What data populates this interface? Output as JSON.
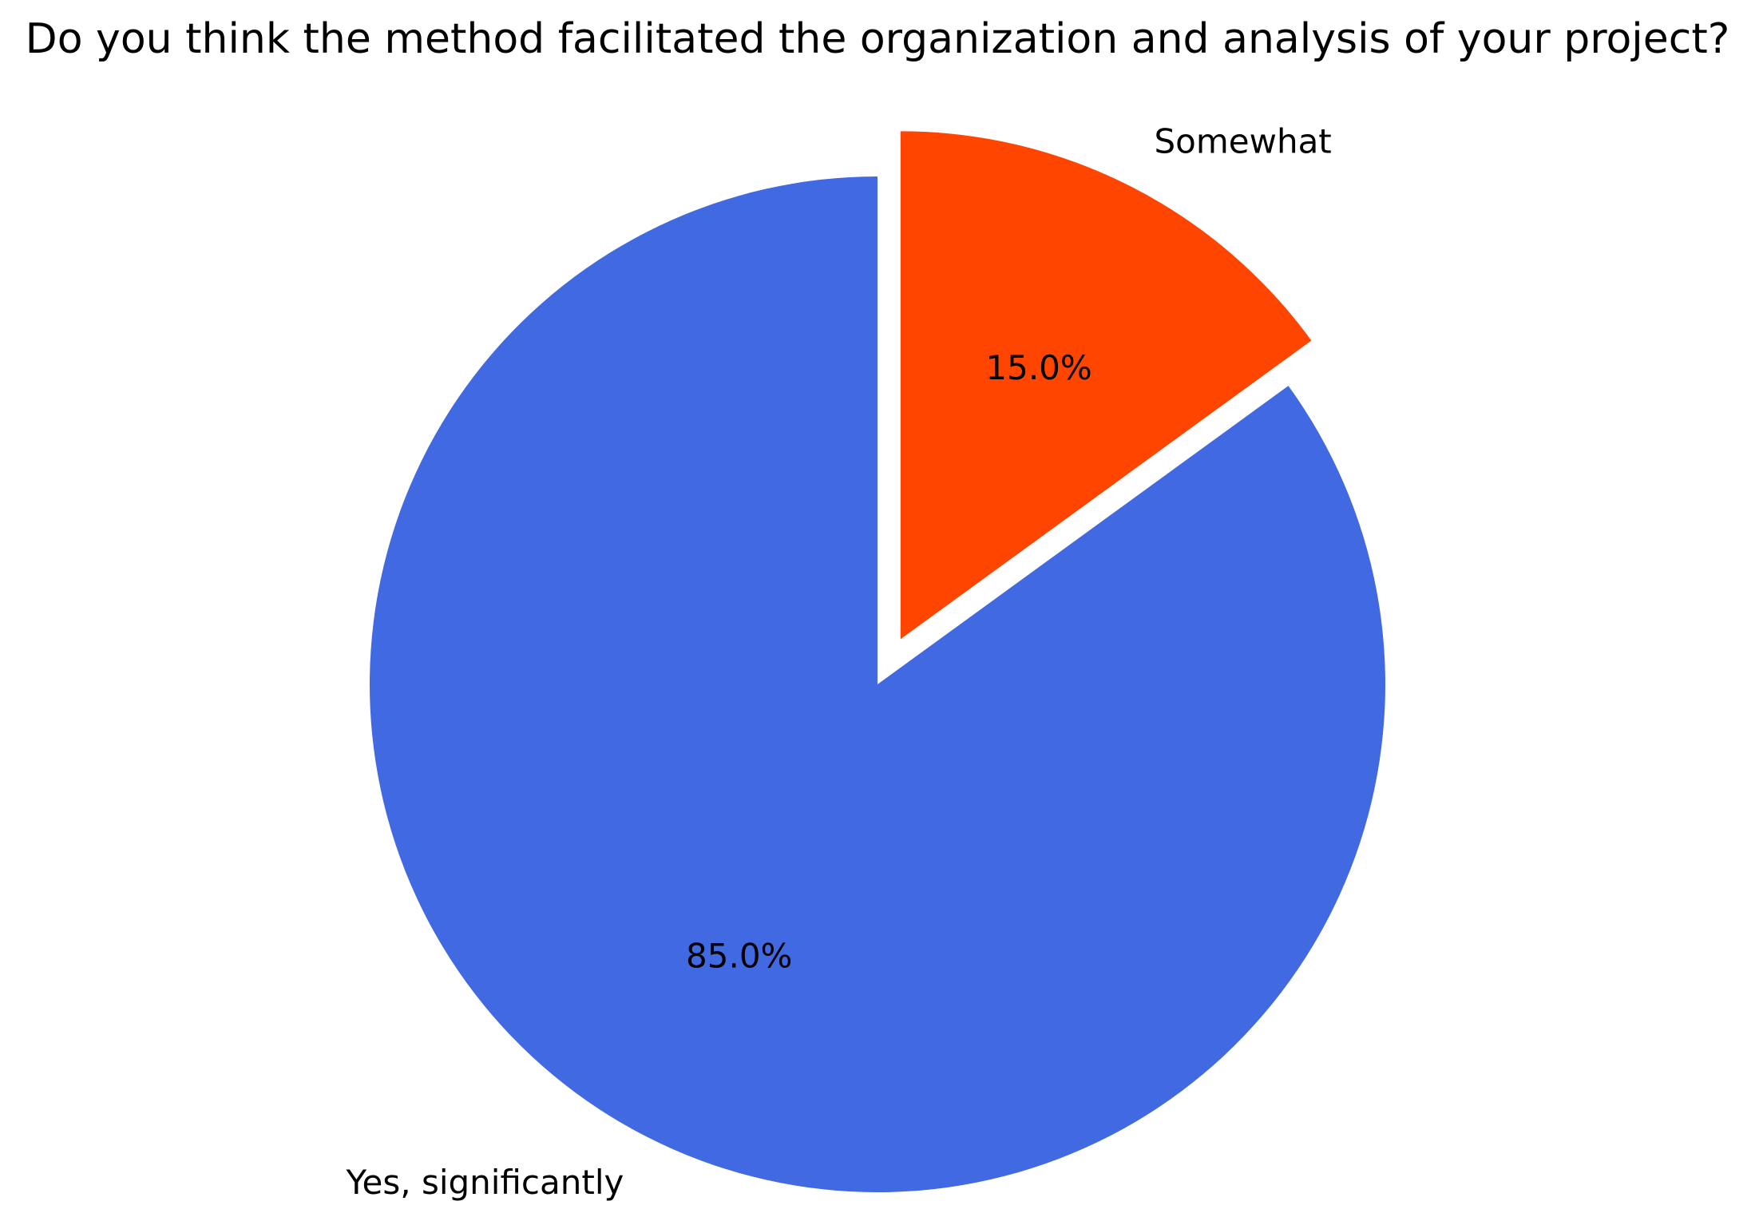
{
  "chart_data": {
    "type": "pie",
    "title": "Do you think the method facilitated the organization and analysis of your project?",
    "slices": [
      {
        "label": "Somewhat",
        "value": 15.0,
        "pct_label": "15.0%",
        "color": "#FF4500",
        "exploded": true
      },
      {
        "label": "Yes, significantly",
        "value": 85.0,
        "pct_label": "85.0%",
        "color": "#4169E1",
        "exploded": false
      }
    ],
    "start_angle": "top",
    "direction": "clockwise",
    "legend": "none"
  }
}
